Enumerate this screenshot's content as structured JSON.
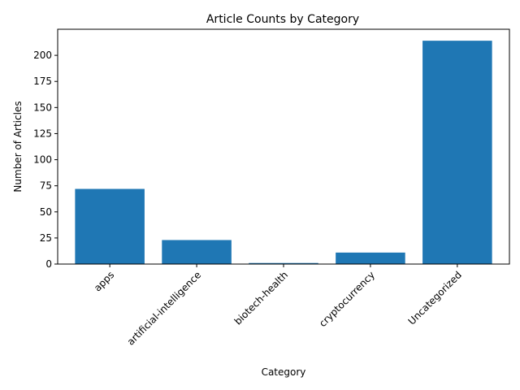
{
  "chart_data": {
    "type": "bar",
    "title": "Article Counts by Category",
    "xlabel": "Category",
    "ylabel": "Number of Articles",
    "categories": [
      "apps",
      "artificial-intelligence",
      "biotech-health",
      "cryptocurrency",
      "Uncategorized"
    ],
    "values": [
      72,
      23,
      1,
      11,
      214
    ],
    "ylim": [
      0,
      225
    ],
    "yticks": [
      0,
      25,
      50,
      75,
      100,
      125,
      150,
      175,
      200
    ],
    "bar_color": "#1f77b4",
    "grid": false,
    "legend": "none"
  }
}
